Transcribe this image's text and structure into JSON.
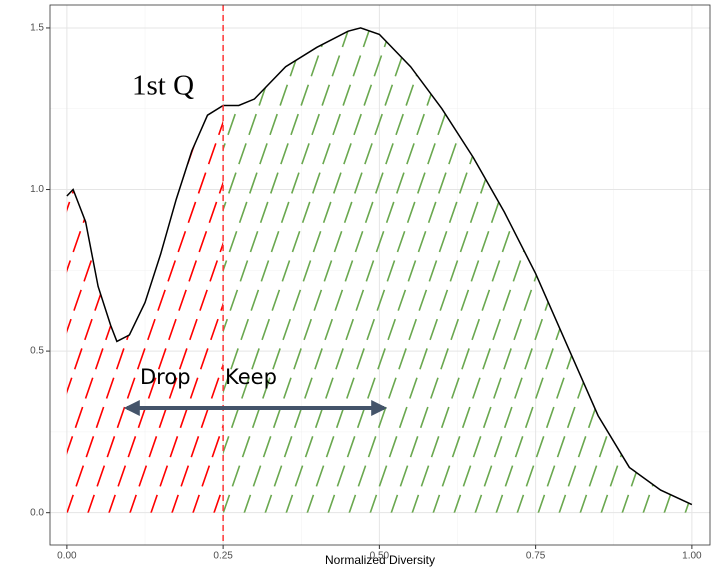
{
  "chart_data": {
    "type": "line",
    "x_label": "Normalized Diversity",
    "x": [
      0.0,
      0.01,
      0.03,
      0.05,
      0.07,
      0.08,
      0.1,
      0.125,
      0.15,
      0.175,
      0.2,
      0.225,
      0.25,
      0.275,
      0.3,
      0.35,
      0.4,
      0.45,
      0.47,
      0.5,
      0.55,
      0.6,
      0.65,
      0.7,
      0.75,
      0.8,
      0.85,
      0.9,
      0.95,
      1.0
    ],
    "values": [
      0.98,
      1.0,
      0.9,
      0.7,
      0.58,
      0.53,
      0.55,
      0.65,
      0.8,
      0.97,
      1.12,
      1.23,
      1.26,
      1.26,
      1.28,
      1.38,
      1.44,
      1.49,
      1.5,
      1.48,
      1.38,
      1.25,
      1.1,
      0.93,
      0.74,
      0.52,
      0.3,
      0.14,
      0.07,
      0.025
    ],
    "color": "#000000",
    "vline": 0.25,
    "vline_color": "#ff3333",
    "drop_color": "#ff0000",
    "keep_color": "#6aa84f",
    "annotations": [
      "1st Q",
      "Drop",
      "Keep"
    ],
    "xlim": [
      -0.027,
      1.029
    ],
    "ylim": [
      -0.1,
      1.571
    ],
    "xticks": [
      {
        "value": 0,
        "label": "0.00"
      },
      {
        "value": 0.25,
        "label": "0.25"
      },
      {
        "value": 0.5,
        "label": "0.50"
      },
      {
        "value": 0.75,
        "label": "0.75"
      },
      {
        "value": 1,
        "label": "1.00"
      }
    ],
    "yticks": [
      {
        "value": 0,
        "label": "0.0"
      },
      {
        "value": 0.5,
        "label": "0.5"
      },
      {
        "value": 1,
        "label": "1.0"
      },
      {
        "value": 1.5,
        "label": "1.5"
      }
    ],
    "grid": true
  }
}
